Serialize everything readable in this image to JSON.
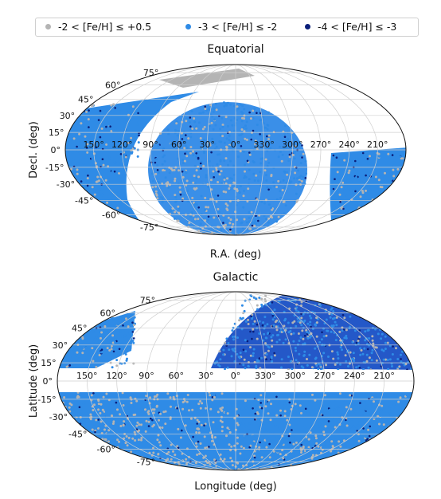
{
  "legend": {
    "items": [
      {
        "label": "-2 < [Fe/H] ≤ +0.5",
        "color": "#b4b4b4"
      },
      {
        "label": "-3 < [Fe/H] ≤ -2",
        "color": "#2f8be6"
      },
      {
        "label": "-4 < [Fe/H] ≤ -3",
        "color": "#0a1f7a"
      }
    ]
  },
  "chart_data": [
    {
      "type": "scatter",
      "projection": "mollweide",
      "title": "Equatorial",
      "xlabel": "R.A. (deg)",
      "ylabel": "Decl. (deg)",
      "xticks": [
        "150°",
        "120°",
        "90°",
        "60°",
        "30°",
        "0°",
        "330°",
        "300°",
        "270°",
        "240°",
        "210°"
      ],
      "yticks": [
        "75°",
        "60°",
        "45°",
        "30°",
        "15°",
        "0°",
        "-15°",
        "-30°",
        "-45°",
        "-60°",
        "-75°"
      ],
      "grid": true,
      "series": [
        {
          "name": "-2 < [Fe/H] ≤ +0.5",
          "color": "#b4b4b4"
        },
        {
          "name": "-3 < [Fe/H] ≤ -2",
          "color": "#2f8be6"
        },
        {
          "name": "-4 < [Fe/H] ≤ -3",
          "color": "#0a1f7a"
        }
      ]
    },
    {
      "type": "scatter",
      "projection": "mollweide",
      "title": "Galactic",
      "xlabel": "Longitude (deg)",
      "ylabel": "Latitude (deg)",
      "xticks": [
        "150°",
        "120°",
        "90°",
        "60°",
        "30°",
        "0°",
        "330°",
        "300°",
        "270°",
        "240°",
        "210°"
      ],
      "yticks": [
        "75°",
        "60°",
        "45°",
        "30°",
        "15°",
        "0°",
        "-15°",
        "-30°",
        "-45°",
        "-60°",
        "-75°"
      ],
      "grid": true,
      "series": [
        {
          "name": "-2 < [Fe/H] ≤ +0.5",
          "color": "#b4b4b4"
        },
        {
          "name": "-3 < [Fe/H] ≤ -2",
          "color": "#2f8be6"
        },
        {
          "name": "-4 < [Fe/H] ≤ -3",
          "color": "#0a1f7a"
        }
      ]
    }
  ]
}
